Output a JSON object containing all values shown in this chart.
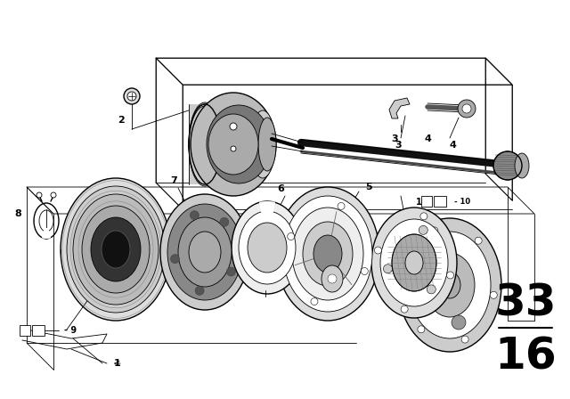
{
  "bg_color": "#ffffff",
  "line_color": "#000000",
  "fig_width": 6.4,
  "fig_height": 4.48,
  "dpi": 100,
  "section_number_top": "33",
  "section_number_bottom": "16",
  "section_fontsize": 36
}
